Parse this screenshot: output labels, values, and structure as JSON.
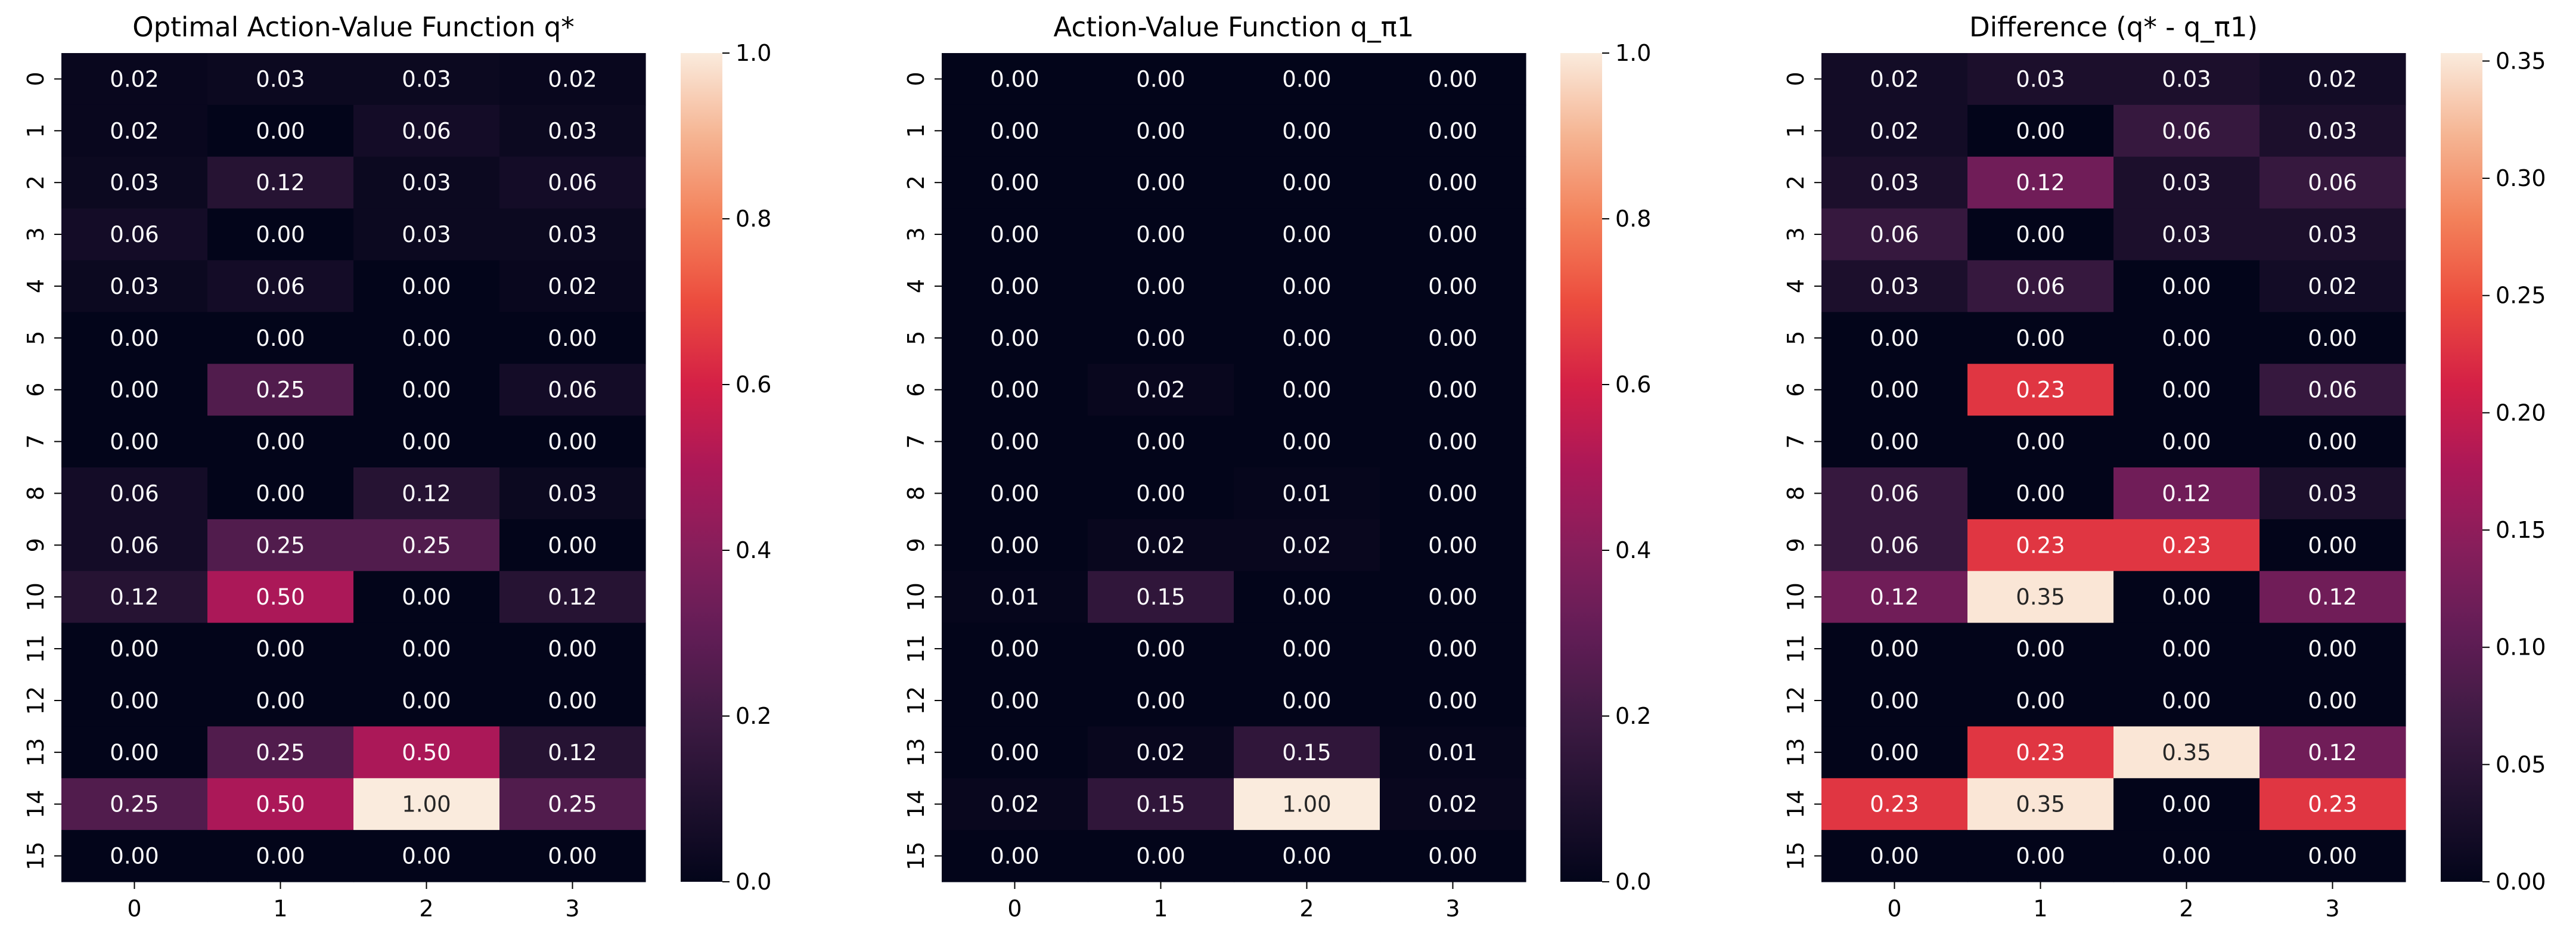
{
  "chart_data": [
    {
      "type": "heatmap",
      "title": "Optimal Action-Value Function q*",
      "x_ticks": [
        "0",
        "1",
        "2",
        "3"
      ],
      "y_ticks": [
        "0",
        "1",
        "2",
        "3",
        "4",
        "5",
        "6",
        "7",
        "8",
        "9",
        "10",
        "11",
        "12",
        "13",
        "14",
        "15"
      ],
      "values": [
        [
          0.02,
          0.03,
          0.03,
          0.02
        ],
        [
          0.02,
          0.0,
          0.06,
          0.03
        ],
        [
          0.03,
          0.12,
          0.03,
          0.06
        ],
        [
          0.06,
          0.0,
          0.03,
          0.03
        ],
        [
          0.03,
          0.06,
          0.0,
          0.02
        ],
        [
          0.0,
          0.0,
          0.0,
          0.0
        ],
        [
          0.0,
          0.25,
          0.0,
          0.06
        ],
        [
          0.0,
          0.0,
          0.0,
          0.0
        ],
        [
          0.06,
          0.0,
          0.12,
          0.03
        ],
        [
          0.06,
          0.25,
          0.25,
          0.0
        ],
        [
          0.12,
          0.5,
          0.0,
          0.12
        ],
        [
          0.0,
          0.0,
          0.0,
          0.0
        ],
        [
          0.0,
          0.0,
          0.0,
          0.0
        ],
        [
          0.0,
          0.25,
          0.5,
          0.12
        ],
        [
          0.25,
          0.5,
          1.0,
          0.25
        ],
        [
          0.0,
          0.0,
          0.0,
          0.0
        ]
      ],
      "colorbar": {
        "min": 0.0,
        "max": 1.0,
        "ticks": [
          0.0,
          0.2,
          0.4,
          0.6,
          0.8,
          1.0
        ],
        "tick_labels": [
          "0.0",
          "0.2",
          "0.4",
          "0.6",
          "0.8",
          "1.0"
        ]
      },
      "colormap": "rocket"
    },
    {
      "type": "heatmap",
      "title": "Action-Value Function q_π1",
      "x_ticks": [
        "0",
        "1",
        "2",
        "3"
      ],
      "y_ticks": [
        "0",
        "1",
        "2",
        "3",
        "4",
        "5",
        "6",
        "7",
        "8",
        "9",
        "10",
        "11",
        "12",
        "13",
        "14",
        "15"
      ],
      "values": [
        [
          0.0,
          0.0,
          0.0,
          0.0
        ],
        [
          0.0,
          0.0,
          0.0,
          0.0
        ],
        [
          0.0,
          0.0,
          0.0,
          0.0
        ],
        [
          0.0,
          0.0,
          0.0,
          0.0
        ],
        [
          0.0,
          0.0,
          0.0,
          0.0
        ],
        [
          0.0,
          0.0,
          0.0,
          0.0
        ],
        [
          0.0,
          0.02,
          0.0,
          0.0
        ],
        [
          0.0,
          0.0,
          0.0,
          0.0
        ],
        [
          0.0,
          0.0,
          0.01,
          0.0
        ],
        [
          0.0,
          0.02,
          0.02,
          0.0
        ],
        [
          0.01,
          0.15,
          0.0,
          0.0
        ],
        [
          0.0,
          0.0,
          0.0,
          0.0
        ],
        [
          0.0,
          0.0,
          0.0,
          0.0
        ],
        [
          0.0,
          0.02,
          0.15,
          0.01
        ],
        [
          0.02,
          0.15,
          1.0,
          0.02
        ],
        [
          0.0,
          0.0,
          0.0,
          0.0
        ]
      ],
      "colorbar": {
        "min": 0.0,
        "max": 1.0,
        "ticks": [
          0.0,
          0.2,
          0.4,
          0.6,
          0.8,
          1.0
        ],
        "tick_labels": [
          "0.0",
          "0.2",
          "0.4",
          "0.6",
          "0.8",
          "1.0"
        ]
      },
      "colormap": "rocket"
    },
    {
      "type": "heatmap",
      "title": "Difference (q* - q_π1)",
      "x_ticks": [
        "0",
        "1",
        "2",
        "3"
      ],
      "y_ticks": [
        "0",
        "1",
        "2",
        "3",
        "4",
        "5",
        "6",
        "7",
        "8",
        "9",
        "10",
        "11",
        "12",
        "13",
        "14",
        "15"
      ],
      "values": [
        [
          0.02,
          0.03,
          0.03,
          0.02
        ],
        [
          0.02,
          0.0,
          0.06,
          0.03
        ],
        [
          0.03,
          0.12,
          0.03,
          0.06
        ],
        [
          0.06,
          0.0,
          0.03,
          0.03
        ],
        [
          0.03,
          0.06,
          0.0,
          0.02
        ],
        [
          0.0,
          0.0,
          0.0,
          0.0
        ],
        [
          0.0,
          0.23,
          0.0,
          0.06
        ],
        [
          0.0,
          0.0,
          0.0,
          0.0
        ],
        [
          0.06,
          0.0,
          0.12,
          0.03
        ],
        [
          0.06,
          0.23,
          0.23,
          0.0
        ],
        [
          0.12,
          0.35,
          0.0,
          0.12
        ],
        [
          0.0,
          0.0,
          0.0,
          0.0
        ],
        [
          0.0,
          0.0,
          0.0,
          0.0
        ],
        [
          0.0,
          0.23,
          0.35,
          0.12
        ],
        [
          0.23,
          0.35,
          0.0,
          0.23
        ],
        [
          0.0,
          0.0,
          0.0,
          0.0
        ]
      ],
      "colorbar": {
        "min": 0.0,
        "max": 0.3534,
        "ticks": [
          0.0,
          0.05,
          0.1,
          0.15,
          0.2,
          0.25,
          0.3,
          0.35
        ],
        "tick_labels": [
          "0.00",
          "0.05",
          "0.10",
          "0.15",
          "0.20",
          "0.25",
          "0.30",
          "0.35"
        ]
      },
      "colormap": "rocket"
    }
  ]
}
